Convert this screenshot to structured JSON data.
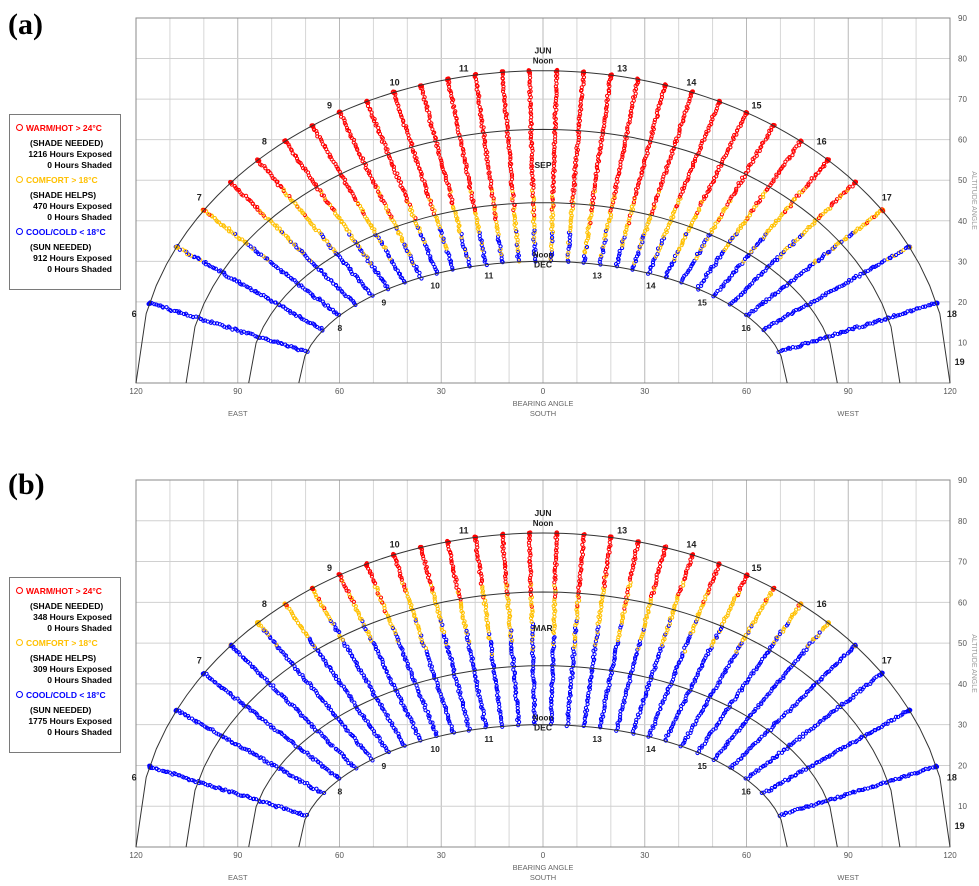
{
  "panels": [
    {
      "label": "(a)",
      "legend": [
        {
          "head": "WARM/HOT > 24°C",
          "color": "#ff0000",
          "sub": "(SHADE NEEDED)",
          "exposed": "1216 Hours Exposed",
          "shaded": "0 Hours Shaded"
        },
        {
          "head": "COMFORT > 18°C",
          "color": "#ffc000",
          "sub": "(SHADE HELPS)",
          "exposed": "470 Hours Exposed",
          "shaded": "0 Hours Shaded"
        },
        {
          "head": "COOL/COLD < 18°C",
          "color": "#0000ff",
          "sub": "(SUN NEEDED)",
          "exposed": "912 Hours Exposed",
          "shaded": "0 Hours Shaded"
        }
      ]
    },
    {
      "label": "(b)",
      "legend": [
        {
          "head": "WARM/HOT > 24°C",
          "color": "#ff0000",
          "sub": "(SHADE NEEDED)",
          "exposed": "348 Hours Exposed",
          "shaded": "0 Hours Shaded"
        },
        {
          "head": "COMFORT > 18°C",
          "color": "#ffc000",
          "sub": "(SHADE HELPS)",
          "exposed": "309 Hours Exposed",
          "shaded": "0 Hours Shaded"
        },
        {
          "head": "COOL/COLD < 18°C",
          "color": "#0000ff",
          "sub": "(SUN NEEDED)",
          "exposed": "1775 Hours Exposed",
          "shaded": "0 Hours Shaded"
        }
      ]
    }
  ],
  "chart_data": [
    {
      "type": "scatter",
      "title": "",
      "xlabel": "BEARING ANGLE",
      "ylabel": "ALTITUDE ANGLE",
      "xlim": [
        -120,
        120
      ],
      "ylim": [
        0,
        90
      ],
      "x_ticks": [
        {
          "value": -120,
          "label": "120"
        },
        {
          "value": -90,
          "label": "90"
        },
        {
          "value": -60,
          "label": "60"
        },
        {
          "value": -30,
          "label": "30"
        },
        {
          "value": 0,
          "label": "0"
        },
        {
          "value": 30,
          "label": "30"
        },
        {
          "value": 60,
          "label": "60"
        },
        {
          "value": 90,
          "label": "90"
        },
        {
          "value": 120,
          "label": "120"
        }
      ],
      "y_ticks": [
        10,
        20,
        30,
        40,
        50,
        60,
        70,
        80,
        90
      ],
      "direction_labels": [
        {
          "value": -90,
          "label": "EAST"
        },
        {
          "value": 0,
          "label": "SOUTH"
        },
        {
          "value": 90,
          "label": "WEST"
        }
      ],
      "grid": true,
      "season_labels": [
        {
          "label": "JUN",
          "sub": "Noon"
        },
        {
          "label": "SEP"
        },
        {
          "label": "Noon",
          "sub": "DEC"
        }
      ],
      "hour_labels": [
        "6",
        "7",
        "8",
        "9",
        "10",
        "11",
        "13",
        "14",
        "15",
        "16",
        "17",
        "18",
        "19"
      ],
      "series": [
        {
          "name": "WARM/HOT > 24°C",
          "color": "#ff0000",
          "hours": 1216
        },
        {
          "name": "COMFORT > 18°C",
          "color": "#ffc000",
          "hours": 470
        },
        {
          "name": "COOL/COLD < 18°C",
          "color": "#0000ff",
          "hours": 912
        }
      ],
      "hot_above_altitude": 44,
      "comfort_band": [
        34,
        44
      ]
    },
    {
      "type": "scatter",
      "title": "",
      "xlabel": "BEARING ANGLE",
      "ylabel": "ALTITUDE ANGLE",
      "xlim": [
        -120,
        120
      ],
      "ylim": [
        0,
        90
      ],
      "x_ticks": [
        {
          "value": -120,
          "label": "120"
        },
        {
          "value": -90,
          "label": "90"
        },
        {
          "value": -60,
          "label": "60"
        },
        {
          "value": -30,
          "label": "30"
        },
        {
          "value": 0,
          "label": "0"
        },
        {
          "value": 30,
          "label": "30"
        },
        {
          "value": 60,
          "label": "60"
        },
        {
          "value": 90,
          "label": "90"
        },
        {
          "value": 120,
          "label": "120"
        }
      ],
      "y_ticks": [
        10,
        20,
        30,
        40,
        50,
        60,
        70,
        80,
        90
      ],
      "direction_labels": [
        {
          "value": -90,
          "label": "EAST"
        },
        {
          "value": 0,
          "label": "SOUTH"
        },
        {
          "value": 90,
          "label": "WEST"
        }
      ],
      "grid": true,
      "season_labels": [
        {
          "label": "JUN",
          "sub": "Noon"
        },
        {
          "label": "MAR"
        },
        {
          "label": "Noon",
          "sub": "DEC"
        }
      ],
      "hour_labels": [
        "6",
        "7",
        "8",
        "9",
        "10",
        "11",
        "13",
        "14",
        "15",
        "16",
        "17",
        "18",
        "19"
      ],
      "series": [
        {
          "name": "WARM/HOT > 24°C",
          "color": "#ff0000",
          "hours": 348
        },
        {
          "name": "COMFORT > 18°C",
          "color": "#ffc000",
          "hours": 309
        },
        {
          "name": "COOL/COLD < 18°C",
          "color": "#0000ff",
          "hours": 1775
        }
      ],
      "hot_above_altitude": 62,
      "comfort_band": [
        52,
        62
      ]
    }
  ]
}
